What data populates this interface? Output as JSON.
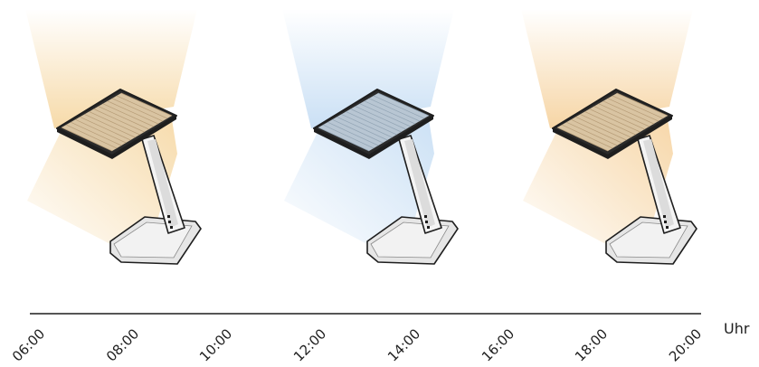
{
  "lamps": [
    {
      "id": "morning",
      "light": "#f6d8a4",
      "panel": "#d9c4a2",
      "panel_line": "#b79d78"
    },
    {
      "id": "noon",
      "light": "#c7def4",
      "panel": "#b8c6d3",
      "panel_line": "#93a5b5"
    },
    {
      "id": "evening",
      "light": "#f6d3a0",
      "panel": "#d9c4a2",
      "panel_line": "#b79d78"
    }
  ],
  "timeline": {
    "ticks": [
      "06:00",
      "08:00",
      "10:00",
      "12:00",
      "14:00",
      "16:00",
      "18:00",
      "20:00"
    ],
    "unit": "Uhr"
  }
}
